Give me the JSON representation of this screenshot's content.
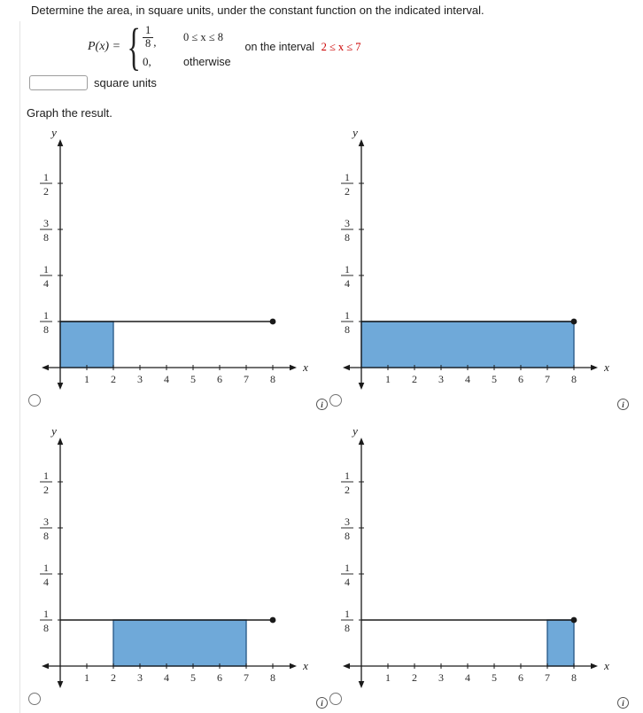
{
  "problem": {
    "prompt": "Determine the area, in square units, under the constant function on the indicated interval.",
    "piecewise": {
      "lhs": "P(x) =",
      "cases": [
        {
          "value_num": "1",
          "value_den": "8",
          "value_suffix": ",",
          "condition": "0 ≤ x ≤ 8"
        },
        {
          "value": "0,",
          "condition": "otherwise"
        }
      ],
      "interval_label": "on the interval",
      "interval": "2 ≤ x ≤ 7",
      "interval_color": "#cc0000"
    },
    "answer": {
      "value": "",
      "unit_label": "square units"
    },
    "graph_prompt": "Graph the result."
  },
  "icons": {
    "info": "i"
  },
  "graph_style": {
    "shade_fill": "#6fa9d9",
    "shade_stroke": "#2d5e8c",
    "axis_color": "#1a1a1a",
    "tick_label_color": "#2b2b2b"
  },
  "chart_data": [
    {
      "type": "area",
      "option_id": "A",
      "xlabel": "x",
      "ylabel": "y",
      "x_ticks": [
        1,
        2,
        3,
        4,
        5,
        6,
        7,
        8
      ],
      "y_ticks": [
        {
          "num": "1",
          "den": "2",
          "value": 0.5
        },
        {
          "num": "3",
          "den": "8",
          "value": 0.375
        },
        {
          "num": "1",
          "den": "4",
          "value": 0.25
        },
        {
          "num": "1",
          "den": "8",
          "value": 0.125
        }
      ],
      "xlim": [
        -0.7,
        8.9
      ],
      "ylim": [
        -0.06,
        0.62
      ],
      "segment": {
        "y": 0.125,
        "x_from": 0,
        "x_to": 8,
        "endpoint_dot_x": 8
      },
      "shaded_rect": {
        "x_from": 0,
        "x_to": 2,
        "y_from": 0,
        "y_to": 0.125
      },
      "selected": false
    },
    {
      "type": "area",
      "option_id": "B",
      "xlabel": "x",
      "ylabel": "y",
      "x_ticks": [
        1,
        2,
        3,
        4,
        5,
        6,
        7,
        8
      ],
      "y_ticks": [
        {
          "num": "1",
          "den": "2",
          "value": 0.5
        },
        {
          "num": "3",
          "den": "8",
          "value": 0.375
        },
        {
          "num": "1",
          "den": "4",
          "value": 0.25
        },
        {
          "num": "1",
          "den": "8",
          "value": 0.125
        }
      ],
      "xlim": [
        -0.7,
        8.9
      ],
      "ylim": [
        -0.06,
        0.62
      ],
      "segment": {
        "y": 0.125,
        "x_from": 0,
        "x_to": 8,
        "endpoint_dot_x": 8
      },
      "shaded_rect": {
        "x_from": 0,
        "x_to": 8,
        "y_from": 0,
        "y_to": 0.125
      },
      "selected": false
    },
    {
      "type": "area",
      "option_id": "C",
      "xlabel": "x",
      "ylabel": "y",
      "x_ticks": [
        1,
        2,
        3,
        4,
        5,
        6,
        7,
        8
      ],
      "y_ticks": [
        {
          "num": "1",
          "den": "2",
          "value": 0.5
        },
        {
          "num": "3",
          "den": "8",
          "value": 0.375
        },
        {
          "num": "1",
          "den": "4",
          "value": 0.25
        },
        {
          "num": "1",
          "den": "8",
          "value": 0.125
        }
      ],
      "xlim": [
        -0.7,
        8.9
      ],
      "ylim": [
        -0.06,
        0.62
      ],
      "segment": {
        "y": 0.125,
        "x_from": 0,
        "x_to": 8,
        "endpoint_dot_x": 8
      },
      "shaded_rect": {
        "x_from": 2,
        "x_to": 7,
        "y_from": 0,
        "y_to": 0.125
      },
      "selected": false
    },
    {
      "type": "area",
      "option_id": "D",
      "xlabel": "x",
      "ylabel": "y",
      "x_ticks": [
        1,
        2,
        3,
        4,
        5,
        6,
        7,
        8
      ],
      "y_ticks": [
        {
          "num": "1",
          "den": "2",
          "value": 0.5
        },
        {
          "num": "3",
          "den": "8",
          "value": 0.375
        },
        {
          "num": "1",
          "den": "4",
          "value": 0.25
        },
        {
          "num": "1",
          "den": "8",
          "value": 0.125
        }
      ],
      "xlim": [
        -0.7,
        8.9
      ],
      "ylim": [
        -0.06,
        0.62
      ],
      "segment": {
        "y": 0.125,
        "x_from": 0,
        "x_to": 8,
        "endpoint_dot_x": 8
      },
      "shaded_rect": {
        "x_from": 7,
        "x_to": 8,
        "y_from": 0,
        "y_to": 0.125
      },
      "selected": false
    }
  ]
}
